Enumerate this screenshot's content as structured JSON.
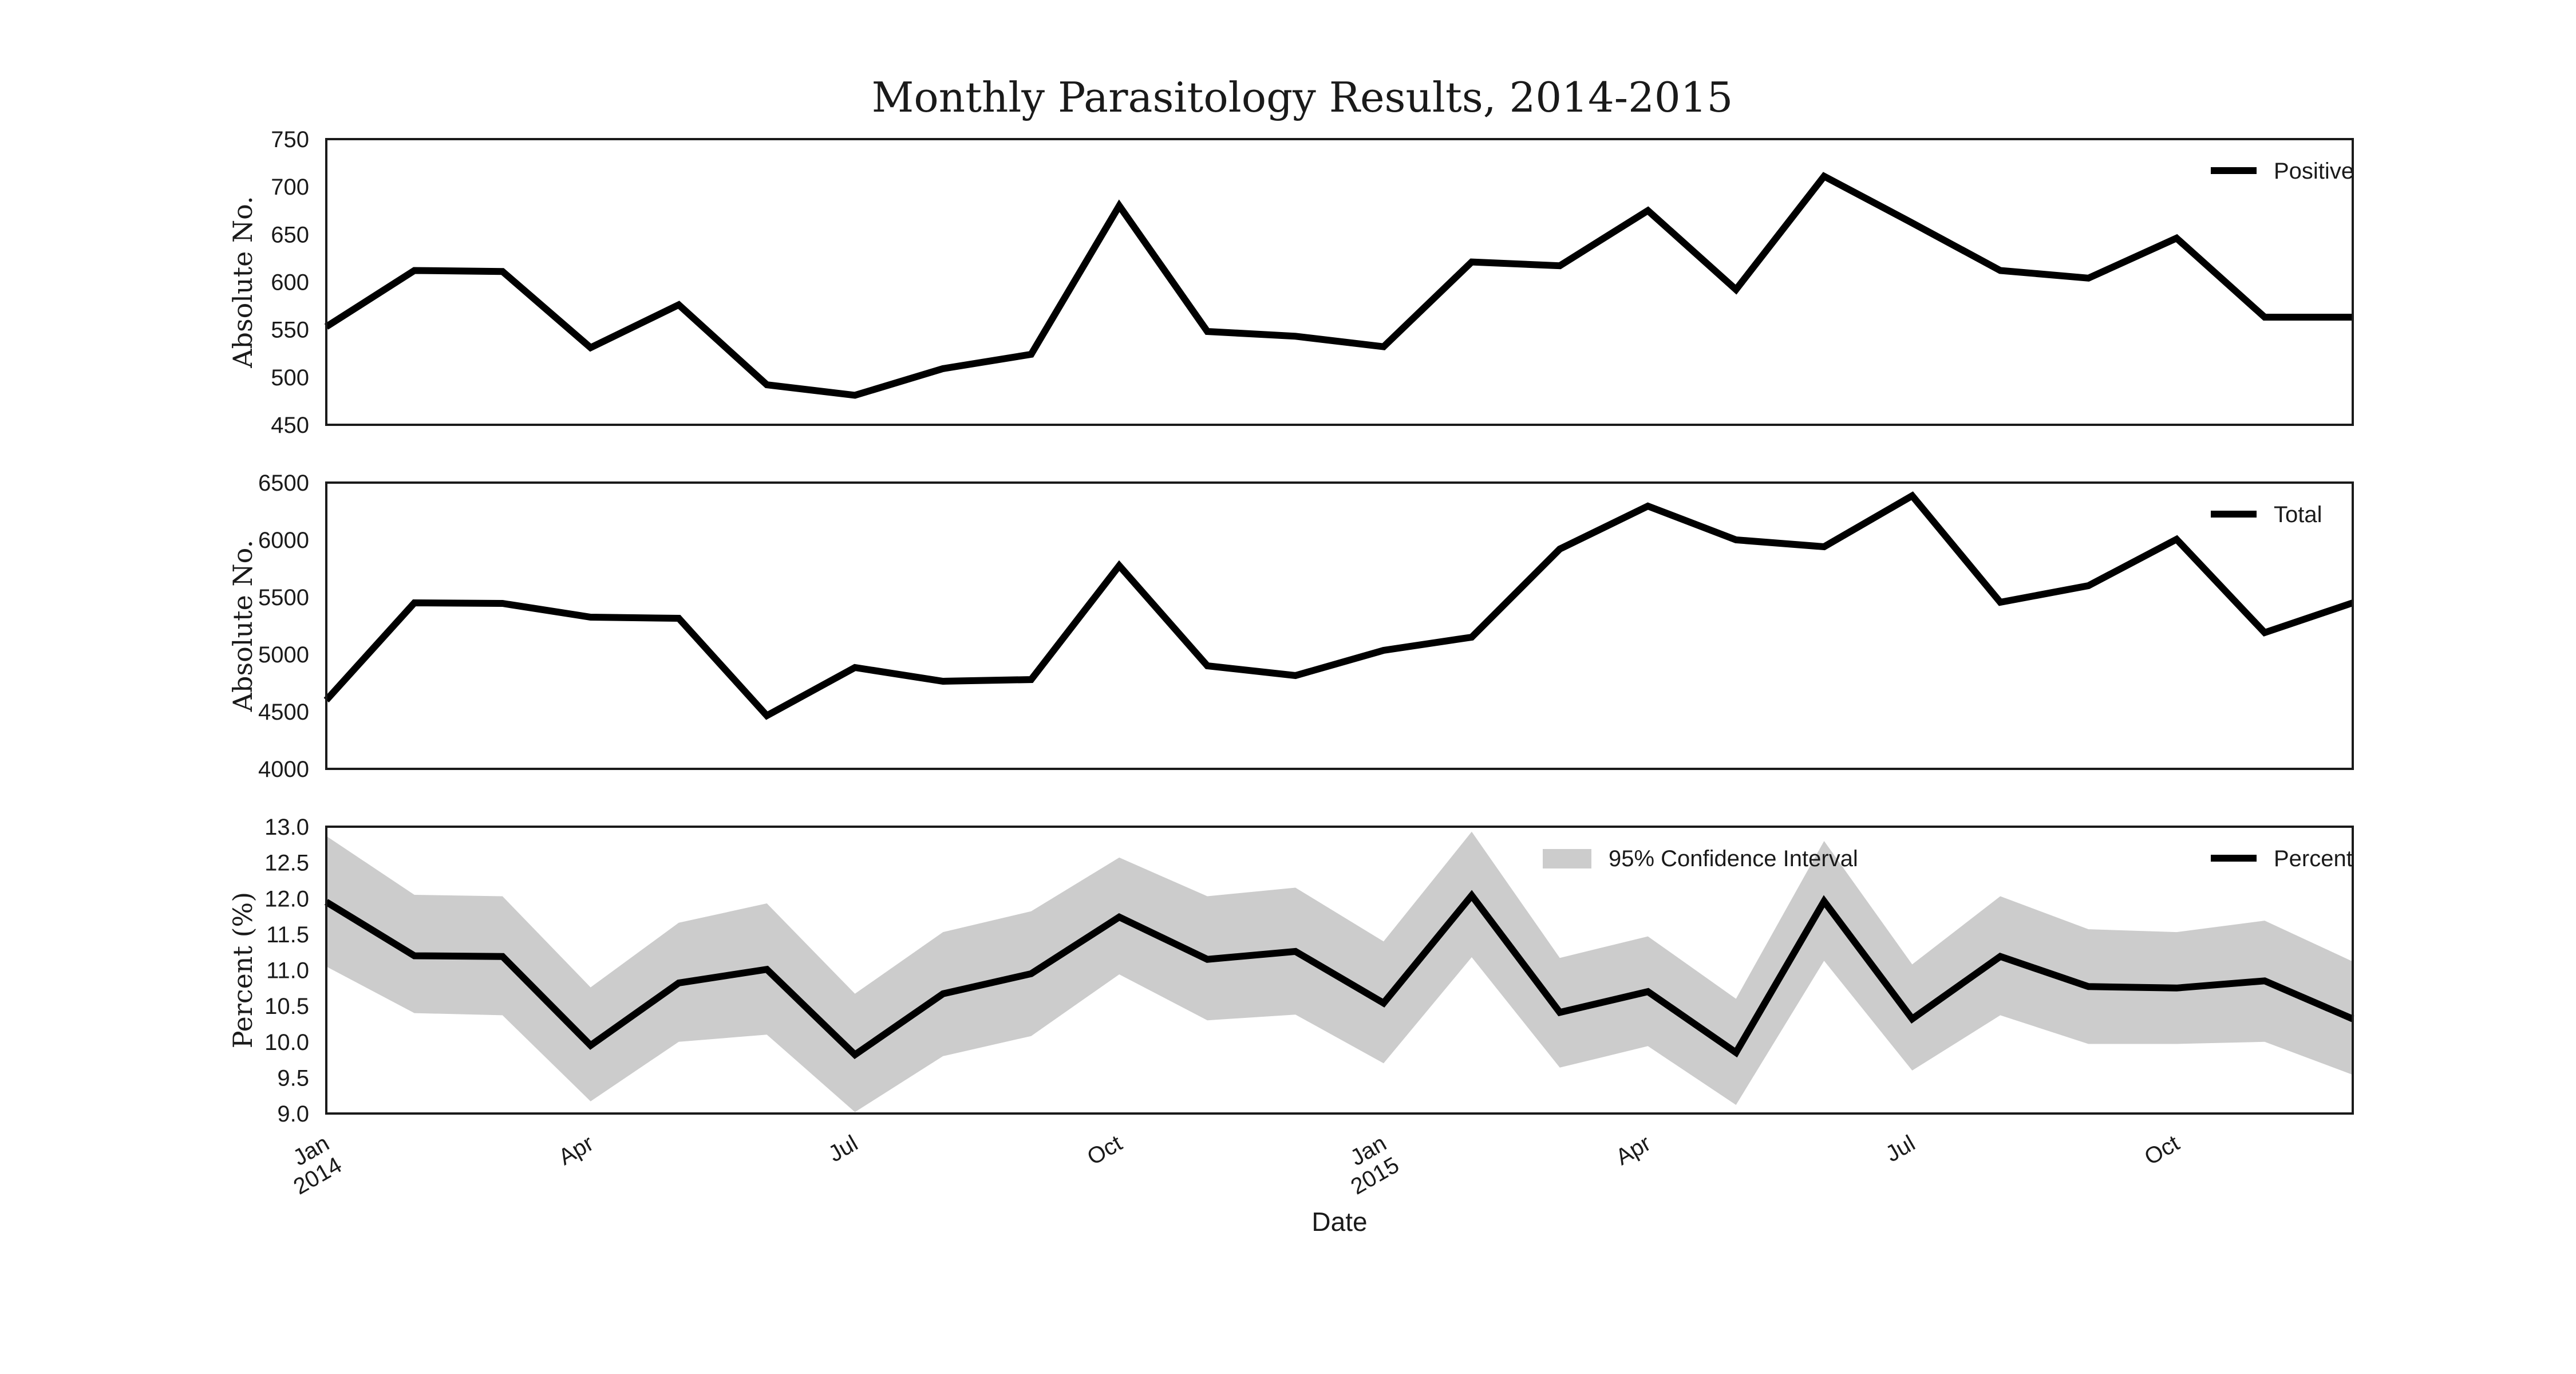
{
  "title": "Monthly Parasitology Results, 2014-2015",
  "colors": {
    "line": "#000000",
    "band": "#cccccc"
  },
  "chart_data": {
    "type": "line",
    "xlabel": "Date",
    "x": [
      "2014-01",
      "2014-02",
      "2014-03",
      "2014-04",
      "2014-05",
      "2014-06",
      "2014-07",
      "2014-08",
      "2014-09",
      "2014-10",
      "2014-11",
      "2014-12",
      "2015-01",
      "2015-02",
      "2015-03",
      "2015-04",
      "2015-05",
      "2015-06",
      "2015-07",
      "2015-08",
      "2015-09",
      "2015-10",
      "2015-11",
      "2015-12"
    ],
    "x_ticks": [
      {
        "date": "2014-01",
        "label": "Jan",
        "label2": "2014"
      },
      {
        "date": "2014-04",
        "label": "Apr",
        "label2": ""
      },
      {
        "date": "2014-07",
        "label": "Jul",
        "label2": ""
      },
      {
        "date": "2014-10",
        "label": "Oct",
        "label2": ""
      },
      {
        "date": "2015-01",
        "label": "Jan",
        "label2": "2015"
      },
      {
        "date": "2015-04",
        "label": "Apr",
        "label2": ""
      },
      {
        "date": "2015-07",
        "label": "Jul",
        "label2": ""
      },
      {
        "date": "2015-10",
        "label": "Oct",
        "label2": ""
      }
    ],
    "panels": [
      {
        "ylabel": "Absolute No.",
        "ylim": [
          450,
          750
        ],
        "yticks": [
          "450",
          "500",
          "550",
          "600",
          "650",
          "700",
          "750"
        ],
        "legend_position": "top-right",
        "series": [
          {
            "name": "Positive",
            "values": [
              553,
              612,
              611,
              531,
              576,
              492,
              481,
              509,
              524,
              680,
              548,
              543,
              532,
              621,
              617,
              675,
              592,
              711,
              662,
              612,
              604,
              646,
              563,
              563
            ]
          }
        ]
      },
      {
        "ylabel": "Absolute No.",
        "ylim": [
          4000,
          6500
        ],
        "yticks": [
          "4000",
          "4500",
          "5000",
          "5500",
          "6000",
          "6500"
        ],
        "legend_position": "top-right",
        "series": [
          {
            "name": "Total",
            "values": [
              4600,
              5450,
              5445,
              5325,
              5315,
              4465,
              4885,
              4765,
              4780,
              5775,
              4900,
              4815,
              5035,
              5150,
              5920,
              6295,
              6000,
              5940,
              6385,
              5455,
              5600,
              6005,
              5190,
              5450
            ]
          }
        ]
      },
      {
        "ylabel": "Percent (%)",
        "ylim": [
          9.0,
          13.0
        ],
        "yticks": [
          "9.0",
          "9.5",
          "10.0",
          "10.5",
          "11.0",
          "11.5",
          "12.0",
          "12.5",
          "13.0"
        ],
        "legend_position": "top-right",
        "series": [
          {
            "name": "Percent",
            "values": [
              11.95,
              11.2,
              11.19,
              9.95,
              10.82,
              11.01,
              9.82,
              10.67,
              10.95,
              11.74,
              11.15,
              11.26,
              10.54,
              12.04,
              10.41,
              10.7,
              9.85,
              11.96,
              10.32,
              11.19,
              10.77,
              10.75,
              10.85,
              10.32
            ]
          }
        ],
        "band": {
          "name": "95% Confidence Interval",
          "lower": [
            11.05,
            10.4,
            10.37,
            9.17,
            10.0,
            10.1,
            9.02,
            9.8,
            10.08,
            10.94,
            10.3,
            10.38,
            9.7,
            11.18,
            9.64,
            9.94,
            9.12,
            11.13,
            9.6,
            10.37,
            9.97,
            9.97,
            10.0,
            9.54
          ],
          "upper": [
            12.87,
            12.05,
            12.03,
            10.76,
            11.66,
            11.93,
            10.67,
            11.53,
            11.82,
            12.57,
            12.03,
            12.15,
            11.4,
            12.93,
            11.17,
            11.47,
            10.6,
            12.8,
            11.08,
            12.03,
            11.57,
            11.53,
            11.69,
            11.12
          ]
        }
      }
    ]
  }
}
